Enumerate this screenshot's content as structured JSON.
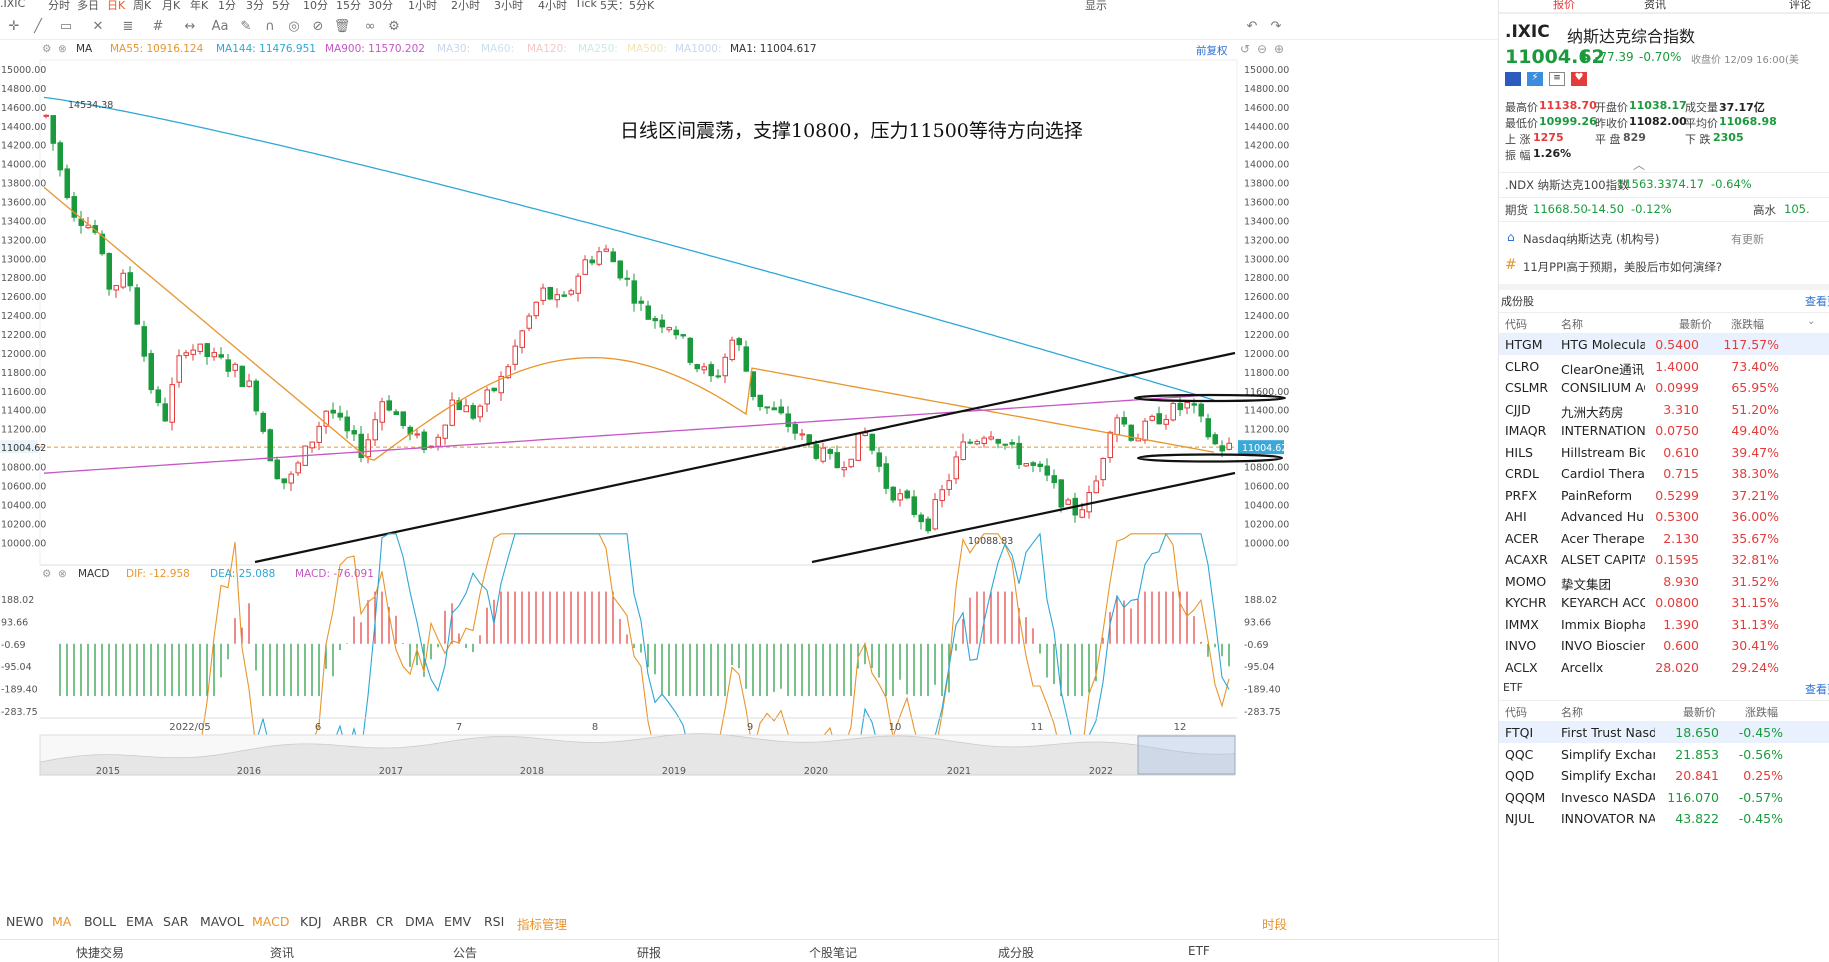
{
  "period_bar": {
    "symbol": ".IXIC",
    "items": [
      "分时",
      "多日",
      "日K",
      "周K",
      "月K",
      "年K",
      "1分",
      "3分",
      "5分",
      "10分",
      "15分",
      "30分",
      "1小时",
      "2小时",
      "3小时",
      "4小时",
      "Tick",
      "5天：5分K"
    ],
    "selected": "日K",
    "right_label": "显示"
  },
  "legend": {
    "main_label": "MA",
    "ma55": "MA55: 10916.124",
    "ma144": "MA144: 11476.951",
    "ma900": "MA900: 11570.202",
    "ma30": "MA30:",
    "ma60": "MA60:",
    "ma120": "MA120:",
    "ma250": "MA250:",
    "ma500": "MA500:",
    "ma1000": "MA1000:",
    "ma1": "MA1: 11004.617",
    "restore_label": "前复权"
  },
  "macd_legend": {
    "label": "MACD",
    "dif": "DIF: -12.958",
    "dea": "DEA: 25.088",
    "macd": "MACD: -76.091"
  },
  "annotation": "日线区间震荡，支撑10800，压力11500等待方向选择",
  "chart_labels": {
    "peak": "14534.38",
    "trough": "10088.83",
    "current": "11004.62"
  },
  "price_axis_left": [
    "15000.00",
    "14800.00",
    "14600.00",
    "14400.00",
    "14200.00",
    "14000.00",
    "13800.00",
    "13600.00",
    "13400.00",
    "13200.00",
    "13000.00",
    "12800.00",
    "12600.00",
    "12400.00",
    "12200.00",
    "12000.00",
    "11800.00",
    "11600.00",
    "11400.00",
    "11200.00",
    "11004.62",
    "10800.00",
    "10600.00",
    "10400.00",
    "10200.00",
    "10000.00"
  ],
  "price_axis_right": [
    "15000.00",
    "14800.00",
    "14600.00",
    "14400.00",
    "14200.00",
    "14000.00",
    "13800.00",
    "13600.00",
    "13400.00",
    "13200.00",
    "13000.00",
    "12800.00",
    "12600.00",
    "12400.00",
    "12200.00",
    "12000.00",
    "11800.00",
    "11600.00",
    "11400.00",
    "11200.00",
    "11004.62",
    "10800.00",
    "10600.00",
    "10400.00",
    "10200.00",
    "10000.00"
  ],
  "macd_axis": [
    "188.02",
    "93.66",
    "-0.69",
    "-95.04",
    "-189.40",
    "-283.75"
  ],
  "date_axis": [
    "2022/05",
    "6",
    "7",
    "8",
    "9",
    "10",
    "11",
    "12"
  ],
  "overview_years": [
    "2015",
    "2016",
    "2017",
    "2018",
    "2019",
    "2020",
    "2021",
    "2022"
  ],
  "indicator_tabs": [
    "NEW0",
    "MA",
    "BOLL",
    "EMA",
    "SAR",
    "MAVOL",
    "MACD",
    "KDJ",
    "ARBR",
    "CR",
    "DMA",
    "EMV",
    "RSI",
    "指标管理"
  ],
  "indicator_right": "时段",
  "bottom_nav": [
    "快捷交易",
    "资讯",
    "公告",
    "研报",
    "个股笔记",
    "成分股",
    "ETF"
  ],
  "right_panel": {
    "tabs": [
      "报价",
      "资讯",
      "评论"
    ],
    "symbol": ".IXIC",
    "name": "纳斯达克综合指数",
    "price": "11004.62",
    "change": "-77.39",
    "change_pct": "-0.70%",
    "close_time": "收盘价 12/09 16:00(美",
    "stats": [
      {
        "label": "最高价",
        "value": "11138.70",
        "cls": "red"
      },
      {
        "label": "开盘价",
        "value": "11038.17",
        "cls": "green"
      },
      {
        "label": "成交量",
        "value": "37.17亿",
        "cls": "dark"
      },
      {
        "label": "最低价",
        "value": "10999.26",
        "cls": "green"
      },
      {
        "label": "昨收价",
        "value": "11082.00",
        "cls": "dark"
      },
      {
        "label": "平均价",
        "value": "11068.98",
        "cls": "green"
      },
      {
        "label": "上 涨",
        "value": "1275",
        "cls": "red"
      },
      {
        "label": "平 盘",
        "value": "829",
        "cls": "gray"
      },
      {
        "label": "下 跌",
        "value": "2305",
        "cls": "green"
      },
      {
        "label": "振 幅",
        "value": "1.26%",
        "cls": "dark"
      }
    ],
    "ndx": {
      "label": ".NDX 纳斯达克100指数",
      "value": "11563.33",
      "change": "-74.17",
      "pct": "-0.64%"
    },
    "futures": {
      "label": "期货",
      "value": "11668.50",
      "change": "-14.50",
      "pct": "-0.12%",
      "right_label": "高水",
      "right_value": "105."
    },
    "news1": {
      "text": "Nasdaq纳斯达克 (机构号)",
      "right": "有更新"
    },
    "news2": {
      "text": "11月PPI高于预期，美股后市如何演绎?"
    },
    "constituents_title": "成份股",
    "constituents_more": "查看更",
    "cols": [
      "代码",
      "名称",
      "最新价",
      "涨跌幅"
    ],
    "stocks": [
      {
        "code": "HTGM",
        "name": "HTG Molecular",
        "price": "0.5400",
        "pct": "117.57%"
      },
      {
        "code": "CLRO",
        "name": "ClearOne通讯",
        "price": "1.4000",
        "pct": "73.40%"
      },
      {
        "code": "CSLMR",
        "name": "CONSILIUM AC",
        "price": "0.0999",
        "pct": "65.95%"
      },
      {
        "code": "CJJD",
        "name": "九洲大药房",
        "price": "3.310",
        "pct": "51.20%"
      },
      {
        "code": "IMAQR",
        "name": "INTERNATIONA",
        "price": "0.0750",
        "pct": "49.40%"
      },
      {
        "code": "HILS",
        "name": "Hillstream BioPh",
        "price": "0.610",
        "pct": "39.47%"
      },
      {
        "code": "CRDL",
        "name": "Cardiol Therape",
        "price": "0.715",
        "pct": "38.30%"
      },
      {
        "code": "PRFX",
        "name": "PainReform",
        "price": "0.5299",
        "pct": "37.21%"
      },
      {
        "code": "AHI",
        "name": "Advanced Hum",
        "price": "0.5300",
        "pct": "36.00%"
      },
      {
        "code": "ACER",
        "name": "Acer Therapeut",
        "price": "2.130",
        "pct": "35.67%"
      },
      {
        "code": "ACAXR",
        "name": "ALSET CAPITAL",
        "price": "0.1595",
        "pct": "32.81%"
      },
      {
        "code": "MOMO",
        "name": "挚文集团",
        "price": "8.930",
        "pct": "31.52%"
      },
      {
        "code": "KYCHR",
        "name": "KEYARCH ACQ",
        "price": "0.0800",
        "pct": "31.15%"
      },
      {
        "code": "IMMX",
        "name": "Immix Biophar",
        "price": "1.390",
        "pct": "31.13%"
      },
      {
        "code": "INVO",
        "name": "INVO Bioscienc",
        "price": "0.600",
        "pct": "30.41%"
      },
      {
        "code": "ACLX",
        "name": "Arcellx",
        "price": "28.020",
        "pct": "29.24%"
      }
    ],
    "etf_title": "ETF",
    "etf_more": "查看更",
    "etf_cols": [
      "代码",
      "名称",
      "最新价",
      "涨跌幅"
    ],
    "etfs": [
      {
        "code": "FTQI",
        "name": "First Trust Nasda",
        "price": "18.650",
        "pct": "-0.45%"
      },
      {
        "code": "QQC",
        "name": "Simplify Exchange",
        "price": "21.853",
        "pct": "-0.56%"
      },
      {
        "code": "QQD",
        "name": "Simplify Exchange",
        "price": "20.841",
        "pct": "0.25%"
      },
      {
        "code": "QQQM",
        "name": "Invesco NASDAQ",
        "price": "116.070",
        "pct": "-0.57%"
      },
      {
        "code": "NJUL",
        "name": "INNOVATOR NAS",
        "price": "43.822",
        "pct": "-0.45%"
      }
    ]
  },
  "colors": {
    "up": "#e43b3b",
    "down": "#1a9a3c",
    "ma55": "#e8952c",
    "ma144": "#2ea7d6",
    "ma900": "#c656c6",
    "accent": "#e85b2a"
  }
}
